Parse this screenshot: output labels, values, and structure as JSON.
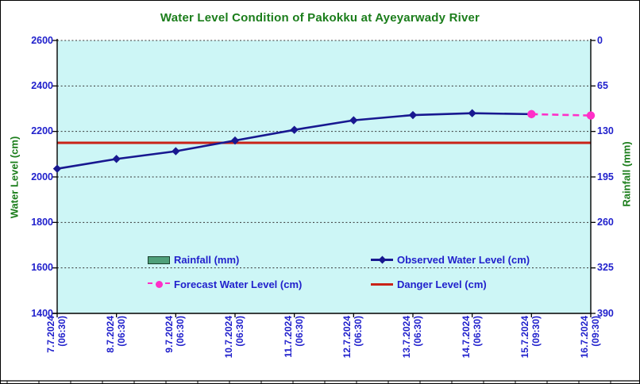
{
  "chart_data": {
    "type": "line",
    "title": "Water Level Condition of Pakokku at Ayeyarwady River",
    "categories": [
      {
        "date": "7.7.2024",
        "time": "(06:30)"
      },
      {
        "date": "8.7.2024",
        "time": "(06:30)"
      },
      {
        "date": "9.7.2024",
        "time": "(06:30)"
      },
      {
        "date": "10.7.2024",
        "time": "(06:30)"
      },
      {
        "date": "11.7.2024",
        "time": "(06:30)"
      },
      {
        "date": "12.7.2024",
        "time": "(06:30)"
      },
      {
        "date": "13.7.2024",
        "time": "(06:30)"
      },
      {
        "date": "14.7.2024",
        "time": "(06:30)"
      },
      {
        "date": "15.7.2024",
        "time": "(09:30)"
      },
      {
        "date": "16.7.2024",
        "time": "(09:30)"
      }
    ],
    "left_axis": {
      "title": "Water Level (cm)",
      "min": 1400,
      "max": 2600,
      "step": 200,
      "ticks": [
        2600,
        2400,
        2200,
        2000,
        1800,
        1600,
        1400
      ]
    },
    "right_axis": {
      "title": "Rainfall (mm)",
      "min": 0,
      "max": 390,
      "step": 65,
      "inverted": true,
      "ticks": [
        0,
        65,
        130,
        195,
        260,
        325,
        390
      ]
    },
    "series": [
      {
        "name": "Rainfall (mm)",
        "type": "bar",
        "color_key": "rainfall",
        "values": []
      },
      {
        "name": "Observed Water Level (cm)",
        "type": "line",
        "marker": "diamond",
        "color_key": "observed",
        "values": [
          2036,
          2079,
          2113,
          2160,
          2207,
          2249,
          2272,
          2280,
          2276,
          null
        ]
      },
      {
        "name": "Forecast Water Level (cm)",
        "type": "line",
        "style": "dashed",
        "marker": "circle",
        "color_key": "forecast",
        "values": [
          null,
          null,
          null,
          null,
          null,
          null,
          null,
          null,
          2276,
          2270
        ]
      },
      {
        "name": "Danger Level (cm)",
        "type": "hline",
        "color_key": "danger",
        "value": 2150
      }
    ],
    "legend_position": "inside-bottom",
    "grid": "horizontal-dotted",
    "colors": {
      "title": "#1B7D1B",
      "axis_green": "#1B7D1B",
      "blue": "#2121CC",
      "observed": "#181890",
      "forecast": "#FF2FC8",
      "danger": "#C92318",
      "rainfall": "#4FA07A",
      "plot_bg": "#CDF6F6",
      "grid": "#333333"
    }
  }
}
